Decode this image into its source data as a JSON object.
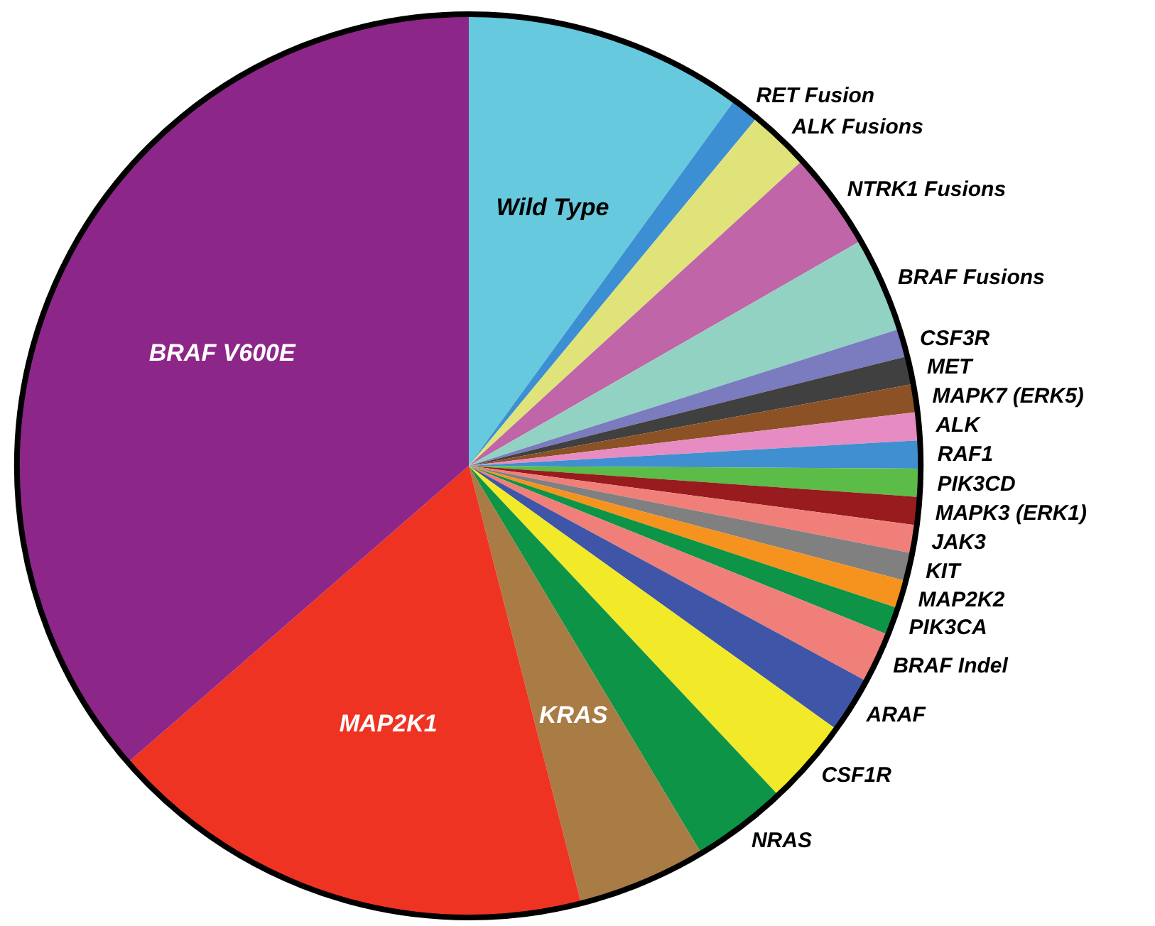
{
  "chart_data": {
    "type": "pie",
    "categories": [
      "Wild Type",
      "RET Fusion",
      "ALK Fusions",
      "NTRK1 Fusions",
      "BRAF Fusions",
      "CSF3R",
      "MET",
      "MAPK7 (ERK5)",
      "ALK",
      "RAF1",
      "PIK3CD",
      "MAPK3 (ERK1)",
      "JAK3",
      "KIT",
      "MAP2K2",
      "PIK3CA",
      "BRAF Indel",
      "ARAF",
      "CSF1R",
      "NRAS",
      "KRAS",
      "MAP2K1",
      "BRAF V600E"
    ],
    "values": [
      10,
      1,
      2.2,
      3.5,
      3.4,
      1,
      1,
      1,
      1,
      1,
      1,
      1,
      1,
      1,
      1,
      1,
      1.8,
      2,
      3.1,
      3.4,
      4.6,
      17.6,
      36.4
    ],
    "colors": [
      "#66c9dd",
      "#3d8fd3",
      "#dfe37a",
      "#c065a8",
      "#92d2c2",
      "#7b7bbf",
      "#404040",
      "#8c5124",
      "#e68cc2",
      "#3f8fd1",
      "#5bbc47",
      "#981b1e",
      "#f07f7a",
      "#808080",
      "#f6921e",
      "#0d9447",
      "#f07f7a",
      "#3f56a8",
      "#f2e928",
      "#0d9447",
      "#a97b45",
      "#ef3323",
      "#8d2689"
    ]
  }
}
